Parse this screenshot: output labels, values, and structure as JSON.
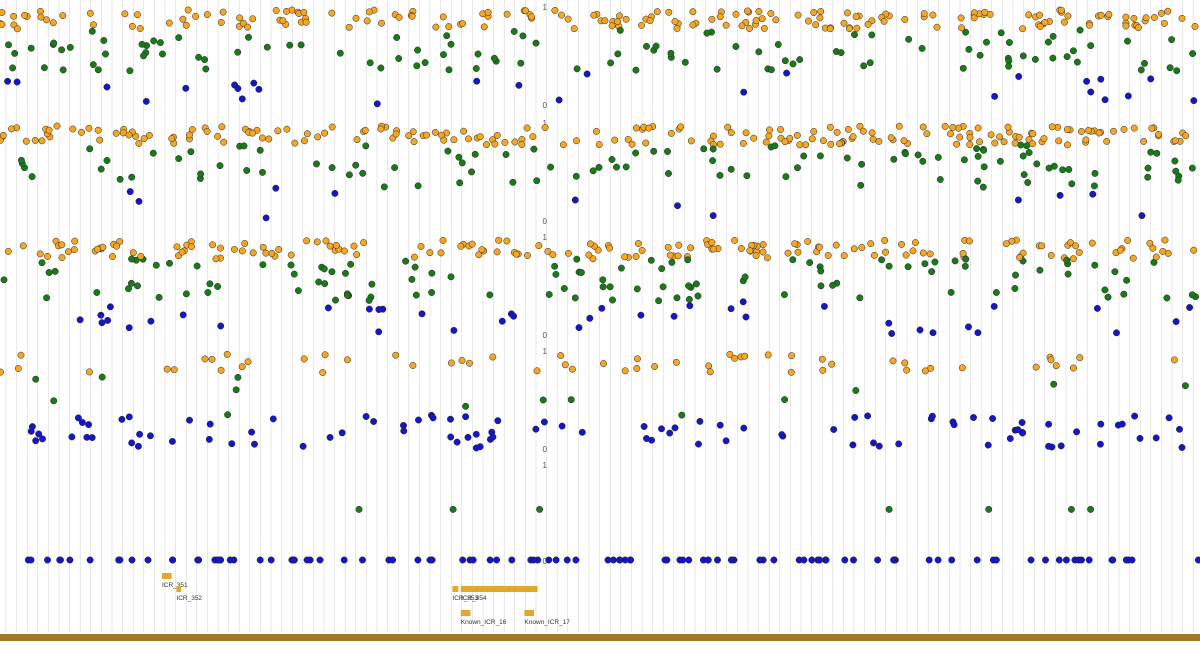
{
  "colors": {
    "high": "#f5a623",
    "mid": "#1a7a1a",
    "low": "#1616c8",
    "annotation": "#e3a829",
    "track_bar": "#a07a28",
    "grid": "#d2d2d2"
  },
  "chart_data": {
    "type": "scatter",
    "title": "",
    "xlabel": "",
    "ylabel": "",
    "grid": true,
    "panels": [
      {
        "id": "sample-1",
        "ylim": [
          0,
          1
        ],
        "y_ticks": [
          "1",
          "0"
        ],
        "n_points": 320,
        "green_share": 0.36,
        "blue_share": 0.07
      },
      {
        "id": "sample-2",
        "ylim": [
          0,
          1
        ],
        "y_ticks": [
          "1",
          "0"
        ],
        "n_points": 320,
        "green_share": 0.34,
        "blue_share": 0.04
      },
      {
        "id": "sample-3",
        "ylim": [
          0,
          1
        ],
        "y_ticks": [
          "1",
          "0"
        ],
        "n_points": 320,
        "green_share": 0.36,
        "blue_share": 0.1
      },
      {
        "id": "sample-4",
        "ylim": [
          0,
          1
        ],
        "y_ticks": [
          "1",
          "0"
        ],
        "n_points": 170,
        "green_share": 0.08,
        "blue_share": 0.55
      },
      {
        "id": "sample-5",
        "ylim": [
          0,
          1
        ],
        "y_ticks": [
          "1",
          "0"
        ],
        "n_points": 110,
        "green_share": 0.04,
        "blue_share": 0.96
      }
    ],
    "annotations": [
      {
        "label": "ICR_351",
        "start": 0.135,
        "end": 0.143,
        "strand": "+"
      },
      {
        "label": "ICR_352",
        "start": 0.147,
        "end": 0.151,
        "strand": "+"
      },
      {
        "label": "ICR_353",
        "start": 0.377,
        "end": 0.382,
        "strand": "+"
      },
      {
        "label": "ICR_354",
        "start": 0.384,
        "end": 0.448,
        "strand": "+"
      },
      {
        "label": "Known_ICR_16",
        "start": 0.384,
        "end": 0.392,
        "strand": "+"
      },
      {
        "label": "Known_ICR_17",
        "start": 0.437,
        "end": 0.445,
        "strand": "+"
      }
    ]
  }
}
